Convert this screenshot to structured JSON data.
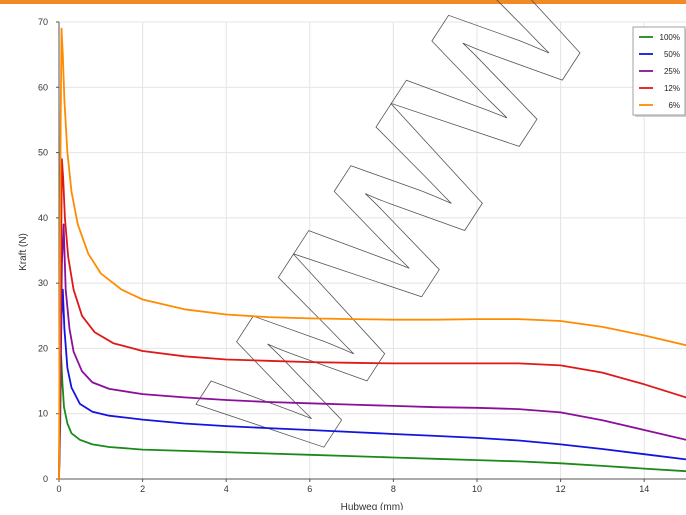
{
  "colors": {
    "top_bar": "#f08a24",
    "grid": "#e4e4e4",
    "axis": "#555555",
    "s100": "#1a8a1a",
    "s50": "#1414e0",
    "s25": "#8a0f9a",
    "s12": "#e01818",
    "s6": "#ff8c00"
  },
  "watermark": {
    "text": "WWW"
  },
  "chart_data": {
    "type": "line",
    "xlabel": "Hubweg (mm)",
    "ylabel": "Kraft (N)",
    "xlim": [
      0,
      15
    ],
    "ylim": [
      0,
      70
    ],
    "x_ticks": [
      "0",
      "2",
      "4",
      "6",
      "8",
      "10",
      "12",
      "14"
    ],
    "y_ticks": [
      "0",
      "10",
      "20",
      "30",
      "40",
      "50",
      "60",
      "70"
    ],
    "grid": true,
    "legend_position": "top-right",
    "series": [
      {
        "name": "100%",
        "color": "#1a8a1a",
        "x": [
          0,
          0.03,
          0.05,
          0.08,
          0.12,
          0.2,
          0.3,
          0.5,
          0.8,
          1.2,
          2,
          3,
          4,
          5,
          6,
          7,
          8,
          9,
          10,
          11,
          12,
          13,
          14,
          15
        ],
        "y": [
          0,
          9,
          19,
          15,
          11,
          8.5,
          7,
          6,
          5.3,
          4.9,
          4.5,
          4.3,
          4.1,
          3.9,
          3.7,
          3.5,
          3.3,
          3.1,
          2.9,
          2.7,
          2.4,
          2.0,
          1.6,
          1.2
        ]
      },
      {
        "name": "50%",
        "color": "#1414e0",
        "x": [
          0,
          0.03,
          0.06,
          0.09,
          0.13,
          0.2,
          0.3,
          0.5,
          0.8,
          1.2,
          2,
          3,
          4,
          5,
          6,
          7,
          8,
          9,
          10,
          11,
          12,
          13,
          14,
          15
        ],
        "y": [
          0,
          14,
          25,
          29,
          23,
          17,
          14,
          11.5,
          10.3,
          9.7,
          9.1,
          8.5,
          8.1,
          7.8,
          7.5,
          7.2,
          6.9,
          6.6,
          6.3,
          5.9,
          5.3,
          4.6,
          3.8,
          3.0
        ]
      },
      {
        "name": "25%",
        "color": "#8a0f9a",
        "x": [
          0,
          0.04,
          0.07,
          0.11,
          0.16,
          0.25,
          0.35,
          0.55,
          0.8,
          1.2,
          2,
          3,
          4,
          5,
          6,
          7,
          8,
          9,
          10,
          11,
          12,
          13,
          14,
          15
        ],
        "y": [
          0,
          20,
          33,
          39,
          29,
          23,
          19.5,
          16.5,
          14.8,
          13.8,
          13.0,
          12.5,
          12.1,
          11.8,
          11.6,
          11.4,
          11.2,
          11.0,
          10.9,
          10.7,
          10.2,
          9.0,
          7.5,
          6.0
        ]
      },
      {
        "name": "12%",
        "color": "#e01818",
        "x": [
          0,
          0.04,
          0.07,
          0.1,
          0.14,
          0.22,
          0.35,
          0.55,
          0.85,
          1.3,
          2,
          3,
          4,
          5,
          6,
          7,
          8,
          9,
          10,
          11,
          12,
          13,
          14,
          15
        ],
        "y": [
          0,
          28,
          49,
          46,
          40,
          34,
          29,
          25,
          22.5,
          20.8,
          19.6,
          18.8,
          18.3,
          18.1,
          17.9,
          17.8,
          17.7,
          17.7,
          17.7,
          17.7,
          17.4,
          16.3,
          14.5,
          12.5
        ]
      },
      {
        "name": "6%",
        "color": "#ff8c00",
        "x": [
          0,
          0.02,
          0.04,
          0.06,
          0.09,
          0.13,
          0.2,
          0.3,
          0.45,
          0.7,
          1.0,
          1.5,
          2,
          3,
          4,
          5,
          6,
          7,
          8,
          9,
          10,
          11,
          12,
          13,
          14,
          15
        ],
        "y": [
          0,
          30,
          55,
          69,
          65,
          58,
          50,
          44,
          39,
          34.5,
          31.5,
          29,
          27.5,
          26.0,
          25.2,
          24.8,
          24.6,
          24.5,
          24.4,
          24.4,
          24.5,
          24.5,
          24.2,
          23.3,
          22.0,
          20.5
        ]
      }
    ]
  }
}
